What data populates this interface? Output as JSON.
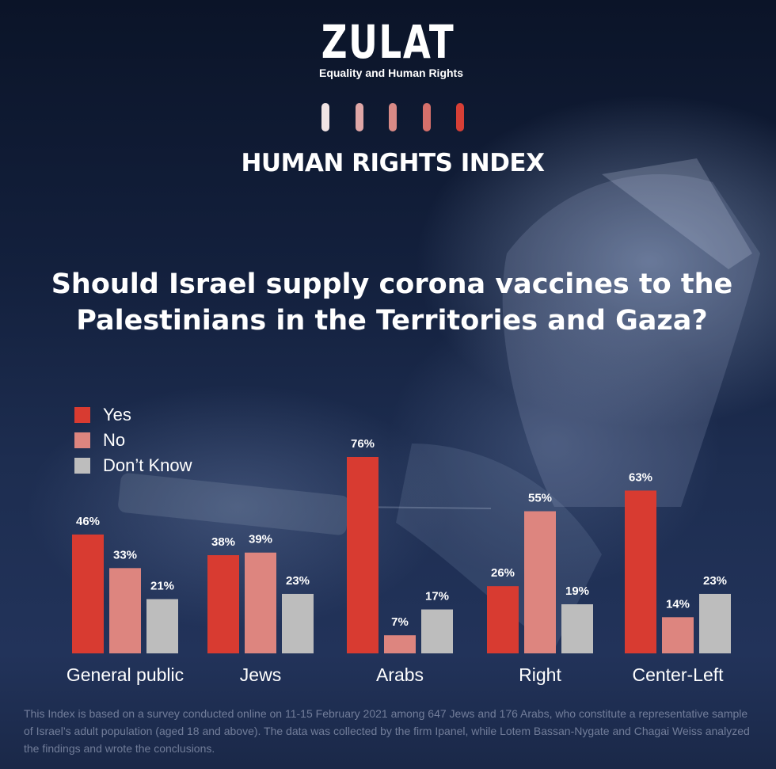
{
  "header": {
    "logo_text": "ZULAT",
    "logo_tagline": "Equality and Human Rights",
    "index_title": "HUMAN RIGHTS INDEX",
    "marks": [
      "#f1e4e4",
      "#e0a7a7",
      "#d98a86",
      "#d6706b",
      "#d73f36"
    ]
  },
  "colors": {
    "yes": "#d83b31",
    "no": "#dd857f",
    "dont_know": "#bdbdbd"
  },
  "chart_data": {
    "type": "bar",
    "title": "Should Israel supply corona vaccines to the Palestinians in the Territories and Gaza?",
    "categories": [
      "General public",
      "Jews",
      "Arabs",
      "Right",
      "Center-Left"
    ],
    "series": [
      {
        "name": "Yes",
        "values": [
          46,
          38,
          76,
          26,
          63
        ],
        "labels": [
          "46%",
          "38%",
          "76%",
          "26%",
          "63%"
        ]
      },
      {
        "name": "No",
        "values": [
          33,
          39,
          7,
          55,
          14
        ],
        "labels": [
          "33%",
          "39%",
          "7%",
          "55%",
          "14%"
        ]
      },
      {
        "name": "Don’t Know",
        "values": [
          21,
          23,
          17,
          19,
          23
        ],
        "labels": [
          "21%",
          "23%",
          "17%",
          "19%",
          "23%"
        ]
      }
    ],
    "unit": "%",
    "ylim": [
      0,
      76
    ],
    "grid": false,
    "legend_position": "top-left"
  },
  "footnote": "This Index is based on a survey conducted online on 11-15 February 2021 among 647 Jews and 176 Arabs, who constitute a representative sample of Israel’s adult population (aged 18 and above). The data was collected by the firm Ipanel, while Lotem Bassan-Nygate and Chagai Weiss analyzed the findings and wrote the conclusions."
}
